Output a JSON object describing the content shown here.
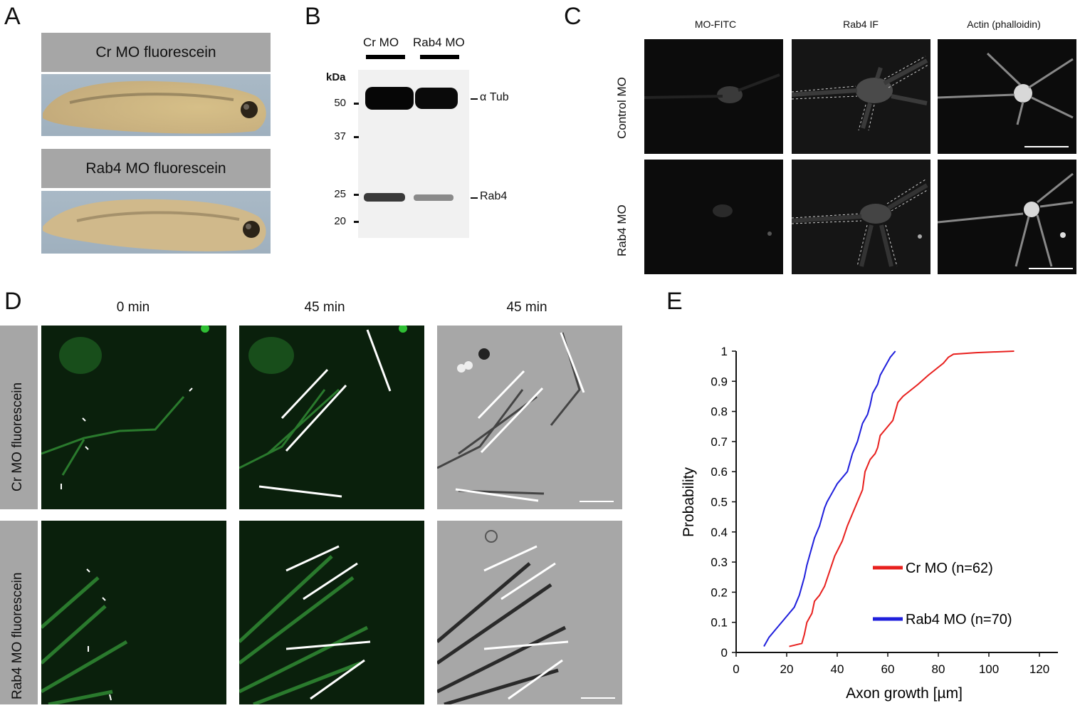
{
  "panels": {
    "a": {
      "letter": "A",
      "top_label": "Cr MO fluorescein",
      "bottom_label": "Rab4 MO fluorescein"
    },
    "b": {
      "letter": "B",
      "lane1": "Cr MO",
      "lane2": "Rab4 MO",
      "kda_label": "kDa",
      "markers": [
        "50",
        "37",
        "25",
        "20"
      ],
      "band_tub": "α Tub",
      "band_rab4": "Rab4"
    },
    "c": {
      "letter": "C",
      "columns": [
        "MO-FITC",
        "Rab4 IF",
        "Actin (phalloidin)"
      ],
      "rows": [
        "Control MO",
        "Rab4 MO"
      ]
    },
    "d": {
      "letter": "D",
      "times": [
        "0 min",
        "45 min",
        "45 min"
      ],
      "rows": [
        "Cr MO fluorescein",
        "Rab4 MO fluorescein"
      ]
    },
    "e": {
      "letter": "E"
    }
  },
  "chart_data": {
    "type": "line",
    "xlabel": "Axon growth [µm]",
    "ylabel": "Probability",
    "xlim": [
      0,
      120
    ],
    "ylim": [
      0,
      1
    ],
    "xticks": [
      0,
      20,
      40,
      60,
      80,
      100,
      120
    ],
    "yticks": [
      0,
      0.1,
      0.2,
      0.3,
      0.4,
      0.5,
      0.6,
      0.7,
      0.8,
      0.9,
      1
    ],
    "legend_placement": "lower-right",
    "grid": false,
    "series": [
      {
        "name": "Cr MO (n=62)",
        "color": "#e8201e",
        "points": [
          [
            21,
            0.02
          ],
          [
            26,
            0.03
          ],
          [
            27,
            0.06
          ],
          [
            28,
            0.1
          ],
          [
            30,
            0.13
          ],
          [
            31,
            0.17
          ],
          [
            33,
            0.19
          ],
          [
            35,
            0.22
          ],
          [
            37,
            0.27
          ],
          [
            39,
            0.32
          ],
          [
            42,
            0.37
          ],
          [
            44,
            0.42
          ],
          [
            46,
            0.46
          ],
          [
            48,
            0.5
          ],
          [
            50,
            0.54
          ],
          [
            51,
            0.6
          ],
          [
            53,
            0.64
          ],
          [
            55,
            0.66
          ],
          [
            56,
            0.68
          ],
          [
            57,
            0.72
          ],
          [
            59,
            0.74
          ],
          [
            62,
            0.77
          ],
          [
            64,
            0.83
          ],
          [
            66,
            0.85
          ],
          [
            69,
            0.87
          ],
          [
            72,
            0.89
          ],
          [
            76,
            0.92
          ],
          [
            79,
            0.94
          ],
          [
            82,
            0.96
          ],
          [
            84,
            0.98
          ],
          [
            86,
            0.99
          ],
          [
            95,
            0.995
          ],
          [
            110,
            1.0
          ]
        ]
      },
      {
        "name": "Rab4 MO (n=70)",
        "color": "#1f1fdc",
        "points": [
          [
            11,
            0.02
          ],
          [
            13,
            0.05
          ],
          [
            16,
            0.08
          ],
          [
            19,
            0.11
          ],
          [
            21,
            0.13
          ],
          [
            23,
            0.15
          ],
          [
            25,
            0.19
          ],
          [
            26,
            0.22
          ],
          [
            27,
            0.25
          ],
          [
            28,
            0.29
          ],
          [
            29,
            0.32
          ],
          [
            30,
            0.35
          ],
          [
            31,
            0.38
          ],
          [
            33,
            0.42
          ],
          [
            34,
            0.45
          ],
          [
            35,
            0.48
          ],
          [
            36,
            0.5
          ],
          [
            38,
            0.53
          ],
          [
            40,
            0.56
          ],
          [
            42,
            0.58
          ],
          [
            44,
            0.6
          ],
          [
            45,
            0.63
          ],
          [
            46,
            0.66
          ],
          [
            48,
            0.7
          ],
          [
            49,
            0.73
          ],
          [
            50,
            0.76
          ],
          [
            52,
            0.79
          ],
          [
            53,
            0.82
          ],
          [
            54,
            0.86
          ],
          [
            56,
            0.89
          ],
          [
            57,
            0.92
          ],
          [
            59,
            0.95
          ],
          [
            61,
            0.98
          ],
          [
            63,
            1.0
          ]
        ]
      }
    ]
  }
}
